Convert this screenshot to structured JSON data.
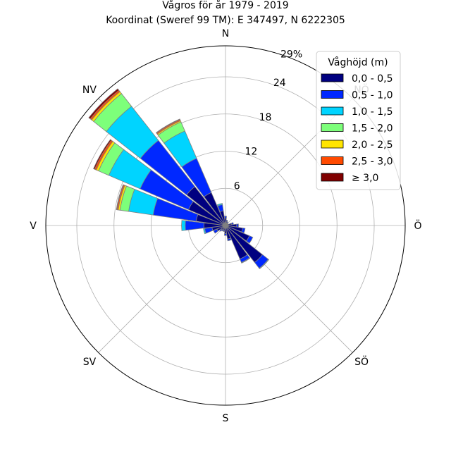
{
  "chart_data": {
    "type": "windrose",
    "title": "Vågros för år 1979 - 2019",
    "subtitle": "Koordinat (Sweref 99 TM): E 347497, N 6222305",
    "directions": [
      "N",
      "NV",
      "V",
      "SV",
      "S",
      "SÖ",
      "Ö",
      "NÖ"
    ],
    "radial_ticks": [
      "6",
      "12",
      "18",
      "24",
      "29%"
    ],
    "radial_max": 29,
    "legend_title": "Våghöjd (m)",
    "legend_position": "top-right",
    "bins": [
      {
        "label": "0,0 - 0,5",
        "color": "#000080"
      },
      {
        "label": "0,5 - 1,0",
        "color": "#0028ff"
      },
      {
        "label": "1,0 - 1,5",
        "color": "#00d4ff"
      },
      {
        "label": "1,5 - 2,0",
        "color": "#7dff7a"
      },
      {
        "label": "2,0 - 2,5",
        "color": "#ffe500"
      },
      {
        "label": "2,5 - 3,0",
        "color": "#ff4a00"
      },
      {
        "label": "≥ 3,0",
        "color": "#800000"
      }
    ],
    "sector_width_deg": 15,
    "sectors": [
      {
        "dir_deg": 0,
        "values": [
          1.2,
          0.3,
          0,
          0,
          0,
          0,
          0
        ]
      },
      {
        "dir_deg": 15,
        "values": [
          0.7,
          0.2,
          0,
          0,
          0,
          0,
          0
        ]
      },
      {
        "dir_deg": 30,
        "values": [
          0.5,
          0.2,
          0,
          0,
          0,
          0,
          0
        ]
      },
      {
        "dir_deg": 45,
        "values": [
          0.4,
          0.1,
          0,
          0,
          0,
          0,
          0
        ]
      },
      {
        "dir_deg": 60,
        "values": [
          0.4,
          0.1,
          0,
          0,
          0,
          0,
          0
        ]
      },
      {
        "dir_deg": 75,
        "values": [
          1.0,
          0.3,
          0,
          0,
          0,
          0,
          0
        ]
      },
      {
        "dir_deg": 90,
        "values": [
          1.8,
          0.3,
          0,
          0,
          0,
          0,
          0
        ]
      },
      {
        "dir_deg": 105,
        "values": [
          2.8,
          0.4,
          0,
          0,
          0,
          0,
          0
        ]
      },
      {
        "dir_deg": 120,
        "values": [
          4.2,
          0.6,
          0,
          0,
          0,
          0,
          0
        ]
      },
      {
        "dir_deg": 135,
        "values": [
          7.6,
          1.2,
          0.1,
          0,
          0,
          0,
          0
        ]
      },
      {
        "dir_deg": 150,
        "values": [
          5.9,
          0.6,
          0.1,
          0,
          0,
          0,
          0
        ]
      },
      {
        "dir_deg": 165,
        "values": [
          2.2,
          0.3,
          0,
          0,
          0,
          0,
          0
        ]
      },
      {
        "dir_deg": 180,
        "values": [
          1.3,
          0.3,
          0,
          0,
          0,
          0,
          0
        ]
      },
      {
        "dir_deg": 195,
        "values": [
          0.8,
          0.2,
          0,
          0,
          0,
          0,
          0
        ]
      },
      {
        "dir_deg": 210,
        "values": [
          0.8,
          0.2,
          0,
          0,
          0,
          0,
          0
        ]
      },
      {
        "dir_deg": 225,
        "values": [
          0.9,
          0.3,
          0,
          0,
          0,
          0,
          0
        ]
      },
      {
        "dir_deg": 240,
        "values": [
          1.5,
          0.6,
          0,
          0,
          0,
          0,
          0
        ]
      },
      {
        "dir_deg": 255,
        "values": [
          2.2,
          1.2,
          0.2,
          0,
          0,
          0,
          0
        ]
      },
      {
        "dir_deg": 270,
        "values": [
          3.5,
          3.0,
          0.6,
          0,
          0,
          0,
          0
        ]
      },
      {
        "dir_deg": 285,
        "values": [
          4.8,
          7.0,
          4.0,
          1.4,
          0.3,
          0.2,
          0.1
        ]
      },
      {
        "dir_deg": 300,
        "values": [
          6.5,
          8.5,
          5.5,
          1.8,
          0.4,
          0.3,
          0.2
        ]
      },
      {
        "dir_deg": 315,
        "values": [
          8.0,
          9.5,
          7.0,
          2.6,
          0.4,
          0.3,
          0.3
        ]
      },
      {
        "dir_deg": 330,
        "values": [
          5.8,
          6.0,
          4.8,
          1.6,
          0.2,
          0.2,
          0.1
        ]
      },
      {
        "dir_deg": 345,
        "values": [
          2.4,
          1.0,
          0.2,
          0,
          0,
          0,
          0
        ]
      }
    ]
  },
  "colors": {
    "grid": "#b0b0b0",
    "bar_edge": "#808080",
    "frame": "#000000"
  }
}
